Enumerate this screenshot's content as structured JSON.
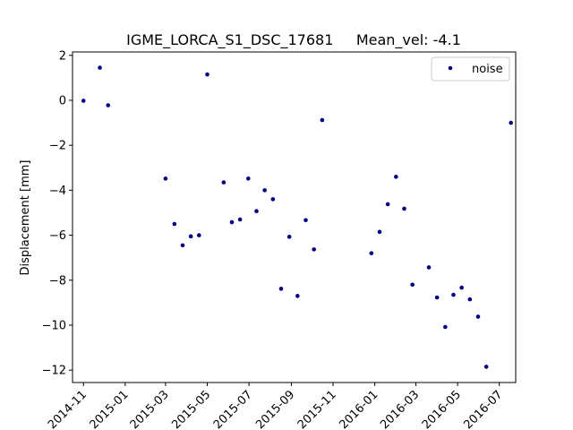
{
  "chart_data": {
    "type": "scatter",
    "title": "IGME_LORCA_S1_DSC_17681     Mean_vel: -4.1",
    "xlabel": "",
    "ylabel": "Displacement [mm]",
    "xlim": [
      "2014-10-16",
      "2016-07-25"
    ],
    "ylim": [
      -12.55,
      2.15
    ],
    "grid": false,
    "legend": {
      "position": "top-right",
      "entries": [
        "noise"
      ]
    },
    "x_ticks": [
      "2014-11",
      "2015-01",
      "2015-03",
      "2015-05",
      "2015-07",
      "2015-09",
      "2015-11",
      "2016-01",
      "2016-03",
      "2016-05",
      "2016-07"
    ],
    "y_ticks": [
      2,
      0,
      -2,
      -4,
      -6,
      -8,
      -10,
      -12
    ],
    "y_tick_labels": [
      "2",
      "0",
      "−2",
      "−4",
      "−6",
      "−8",
      "−10",
      "−12"
    ],
    "marker_color": "#00007f",
    "series": [
      {
        "name": "noise",
        "points": [
          {
            "x": "2014-11-01",
            "y": -0.02
          },
          {
            "x": "2014-11-25",
            "y": 1.45
          },
          {
            "x": "2014-12-07",
            "y": -0.22
          },
          {
            "x": "2015-03-01",
            "y": -3.48
          },
          {
            "x": "2015-03-14",
            "y": -5.5
          },
          {
            "x": "2015-03-26",
            "y": -6.45
          },
          {
            "x": "2015-04-07",
            "y": -6.05
          },
          {
            "x": "2015-04-19",
            "y": -6.0
          },
          {
            "x": "2015-05-01",
            "y": 1.15
          },
          {
            "x": "2015-05-25",
            "y": -3.65
          },
          {
            "x": "2015-06-06",
            "y": -5.42
          },
          {
            "x": "2015-06-18",
            "y": -5.3
          },
          {
            "x": "2015-06-30",
            "y": -3.48
          },
          {
            "x": "2015-07-12",
            "y": -4.93
          },
          {
            "x": "2015-07-24",
            "y": -4.0
          },
          {
            "x": "2015-08-05",
            "y": -4.4
          },
          {
            "x": "2015-08-17",
            "y": -8.38
          },
          {
            "x": "2015-08-29",
            "y": -6.07
          },
          {
            "x": "2015-09-10",
            "y": -8.7
          },
          {
            "x": "2015-09-22",
            "y": -5.33
          },
          {
            "x": "2015-10-04",
            "y": -6.63
          },
          {
            "x": "2015-10-16",
            "y": -0.88
          },
          {
            "x": "2015-12-27",
            "y": -6.8
          },
          {
            "x": "2016-01-08",
            "y": -5.85
          },
          {
            "x": "2016-01-20",
            "y": -4.62
          },
          {
            "x": "2016-02-01",
            "y": -3.4
          },
          {
            "x": "2016-02-13",
            "y": -4.82
          },
          {
            "x": "2016-02-25",
            "y": -8.2
          },
          {
            "x": "2016-03-20",
            "y": -7.43
          },
          {
            "x": "2016-04-01",
            "y": -8.77
          },
          {
            "x": "2016-04-13",
            "y": -10.08
          },
          {
            "x": "2016-04-25",
            "y": -8.65
          },
          {
            "x": "2016-05-07",
            "y": -8.33
          },
          {
            "x": "2016-05-19",
            "y": -8.85
          },
          {
            "x": "2016-05-31",
            "y": -9.62
          },
          {
            "x": "2016-06-12",
            "y": -11.85
          },
          {
            "x": "2016-07-18",
            "y": -1.0
          }
        ]
      }
    ]
  }
}
